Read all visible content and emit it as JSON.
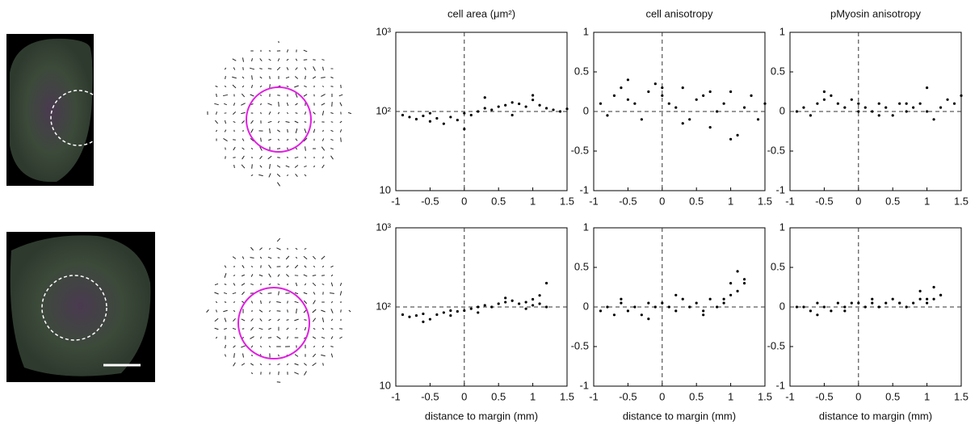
{
  "chart_data": [
    {
      "type": "scatter",
      "title": "cell area (μm²)",
      "log_scale": true,
      "color": "#000000",
      "x": [
        -0.9,
        -0.8,
        -0.7,
        -0.6,
        -0.5,
        -0.4,
        -0.3,
        -0.2,
        -0.1,
        0,
        0.1,
        0.2,
        0.3,
        0.4,
        0.5,
        0.6,
        0.7,
        0.8,
        0.9,
        1.0,
        1.1,
        1.2,
        1.3,
        1.4,
        1.5,
        -0.5,
        0,
        0.3,
        0.7,
        1.0
      ],
      "y": [
        90,
        85,
        80,
        88,
        75,
        82,
        70,
        85,
        78,
        95,
        90,
        100,
        110,
        105,
        115,
        120,
        130,
        125,
        115,
        140,
        120,
        110,
        105,
        100,
        108,
        95,
        60,
        150,
        90,
        160
      ],
      "xlim": [
        -1,
        1.5
      ],
      "xticks": [
        -1,
        -0.5,
        0,
        0.5,
        1,
        1.5
      ],
      "ylim": [
        10,
        1000
      ],
      "yticks": [
        10,
        {
          "value": 100,
          "label": "10²"
        },
        {
          "value": 1000,
          "label": "10³"
        }
      ],
      "hline": 100,
      "vline": 0
    },
    {
      "type": "scatter",
      "title": "cell anisotropy",
      "log_scale": false,
      "color": "#000000",
      "x": [
        -0.9,
        -0.8,
        -0.7,
        -0.6,
        -0.5,
        -0.4,
        -0.3,
        -0.2,
        -0.1,
        0,
        0.1,
        0.2,
        0.3,
        0.4,
        0.5,
        0.6,
        0.7,
        0.8,
        0.9,
        1.0,
        1.1,
        1.2,
        1.3,
        1.4,
        1.5,
        -0.5,
        0,
        0.3,
        0.7,
        1.0
      ],
      "y": [
        0.1,
        -0.05,
        0.2,
        0.3,
        0.15,
        0.1,
        -0.1,
        0.25,
        0.35,
        0.2,
        0.1,
        0.05,
        0.3,
        -0.1,
        0.15,
        0.2,
        -0.2,
        0.0,
        0.1,
        0.25,
        -0.3,
        0.05,
        0.2,
        -0.1,
        0.1,
        0.4,
        0.3,
        -0.15,
        0.25,
        -0.35
      ],
      "xlim": [
        -1,
        1.5
      ],
      "xticks": [
        -1,
        -0.5,
        0,
        0.5,
        1,
        1.5
      ],
      "ylim": [
        -1,
        1
      ],
      "yticks": [
        -1,
        -0.5,
        0,
        0.5,
        1
      ],
      "hline": 0,
      "vline": 0
    },
    {
      "type": "scatter",
      "title": "pMyosin anisotropy",
      "log_scale": false,
      "color": "#000000",
      "x": [
        -0.9,
        -0.8,
        -0.7,
        -0.6,
        -0.5,
        -0.4,
        -0.3,
        -0.2,
        -0.1,
        0,
        0.1,
        0.2,
        0.3,
        0.4,
        0.5,
        0.6,
        0.7,
        0.8,
        0.9,
        1.0,
        1.1,
        1.2,
        1.3,
        1.4,
        1.5,
        -0.5,
        0,
        0.3,
        0.7,
        1.0
      ],
      "y": [
        0,
        0.05,
        -0.05,
        0.1,
        0.15,
        0.2,
        0.1,
        0.05,
        0.15,
        0.1,
        0.05,
        0,
        0.1,
        0.05,
        -0.05,
        0.1,
        0,
        0.05,
        0.1,
        0,
        -0.1,
        0.05,
        0.15,
        0.1,
        0.2,
        0.25,
        0,
        -0.05,
        0.1,
        0.3
      ],
      "xlim": [
        -1,
        1.5
      ],
      "xticks": [
        -1,
        -0.5,
        0,
        0.5,
        1,
        1.5
      ],
      "ylim": [
        -1,
        1
      ],
      "yticks": [
        -1,
        -0.5,
        0,
        0.5,
        1
      ],
      "hline": 0,
      "vline": 0
    },
    {
      "type": "scatter",
      "x_label": "distance to margin (mm)",
      "log_scale": true,
      "color": "#000000",
      "x": [
        -0.9,
        -0.8,
        -0.7,
        -0.6,
        -0.5,
        -0.4,
        -0.3,
        -0.2,
        -0.1,
        0,
        0.1,
        0.2,
        0.3,
        0.4,
        0.5,
        0.6,
        0.7,
        0.8,
        0.9,
        1.0,
        1.1,
        1.2,
        -0.6,
        -0.2,
        0.2,
        0.6,
        0.9,
        1.0,
        1.1,
        1.2
      ],
      "y": [
        80,
        75,
        78,
        82,
        70,
        80,
        85,
        78,
        88,
        90,
        95,
        100,
        105,
        100,
        110,
        115,
        120,
        110,
        115,
        105,
        110,
        100,
        65,
        90,
        85,
        130,
        95,
        125,
        140,
        200
      ],
      "xlim": [
        -1,
        1.5
      ],
      "xticks": [
        -1,
        -0.5,
        0,
        0.5,
        1,
        1.5
      ],
      "ylim": [
        10,
        1000
      ],
      "yticks": [
        10,
        {
          "value": 100,
          "label": "10²"
        },
        {
          "value": 1000,
          "label": "10³"
        }
      ],
      "hline": 100,
      "vline": 0
    },
    {
      "type": "scatter",
      "x_label": "distance to margin (mm)",
      "log_scale": false,
      "color": "#000000",
      "x": [
        -0.9,
        -0.8,
        -0.7,
        -0.6,
        -0.5,
        -0.4,
        -0.3,
        -0.2,
        -0.1,
        0,
        0.1,
        0.2,
        0.3,
        0.4,
        0.5,
        0.6,
        0.7,
        0.8,
        0.9,
        1.0,
        1.1,
        1.2,
        -0.6,
        -0.2,
        0.2,
        0.6,
        0.9,
        1.0,
        1.1,
        1.2
      ],
      "y": [
        -0.05,
        0,
        -0.1,
        0.05,
        -0.05,
        0,
        -0.1,
        0.05,
        0,
        0.05,
        0,
        -0.05,
        0.1,
        0,
        0.05,
        -0.1,
        0.1,
        0,
        0.05,
        0.15,
        0.2,
        0.3,
        0.1,
        -0.15,
        0.15,
        -0.05,
        0.1,
        0.3,
        0.45,
        0.35
      ],
      "xlim": [
        -1,
        1.5
      ],
      "xticks": [
        -1,
        -0.5,
        0,
        0.5,
        1,
        1.5
      ],
      "ylim": [
        -1,
        1
      ],
      "yticks": [
        -1,
        -0.5,
        0,
        0.5,
        1
      ],
      "hline": 0,
      "vline": 0
    },
    {
      "type": "scatter",
      "x_label": "distance to margin (mm)",
      "log_scale": false,
      "color": "#000000",
      "x": [
        -0.9,
        -0.8,
        -0.7,
        -0.6,
        -0.5,
        -0.4,
        -0.3,
        -0.2,
        -0.1,
        0,
        0.1,
        0.2,
        0.3,
        0.4,
        0.5,
        0.6,
        0.7,
        0.8,
        0.9,
        1.0,
        1.1,
        1.2,
        -0.6,
        -0.2,
        0.2,
        0.6,
        0.9,
        1.0,
        1.1,
        1.2
      ],
      "y": [
        0,
        0,
        -0.05,
        0.05,
        0,
        -0.05,
        0.05,
        0,
        0.05,
        0.05,
        0,
        0.05,
        0,
        0.05,
        0.1,
        0.05,
        0,
        0.05,
        0.1,
        0.05,
        0.1,
        0.15,
        -0.1,
        -0.05,
        0.1,
        0.05,
        0.2,
        0.1,
        0.25,
        0.15
      ],
      "xlim": [
        -1,
        1.5
      ],
      "xticks": [
        -1,
        -0.5,
        0,
        0.5,
        1,
        1.5
      ],
      "ylim": [
        -1,
        1
      ],
      "yticks": [
        -1,
        -0.5,
        0,
        0.5,
        1
      ],
      "hline": 0,
      "vline": 0
    }
  ]
}
